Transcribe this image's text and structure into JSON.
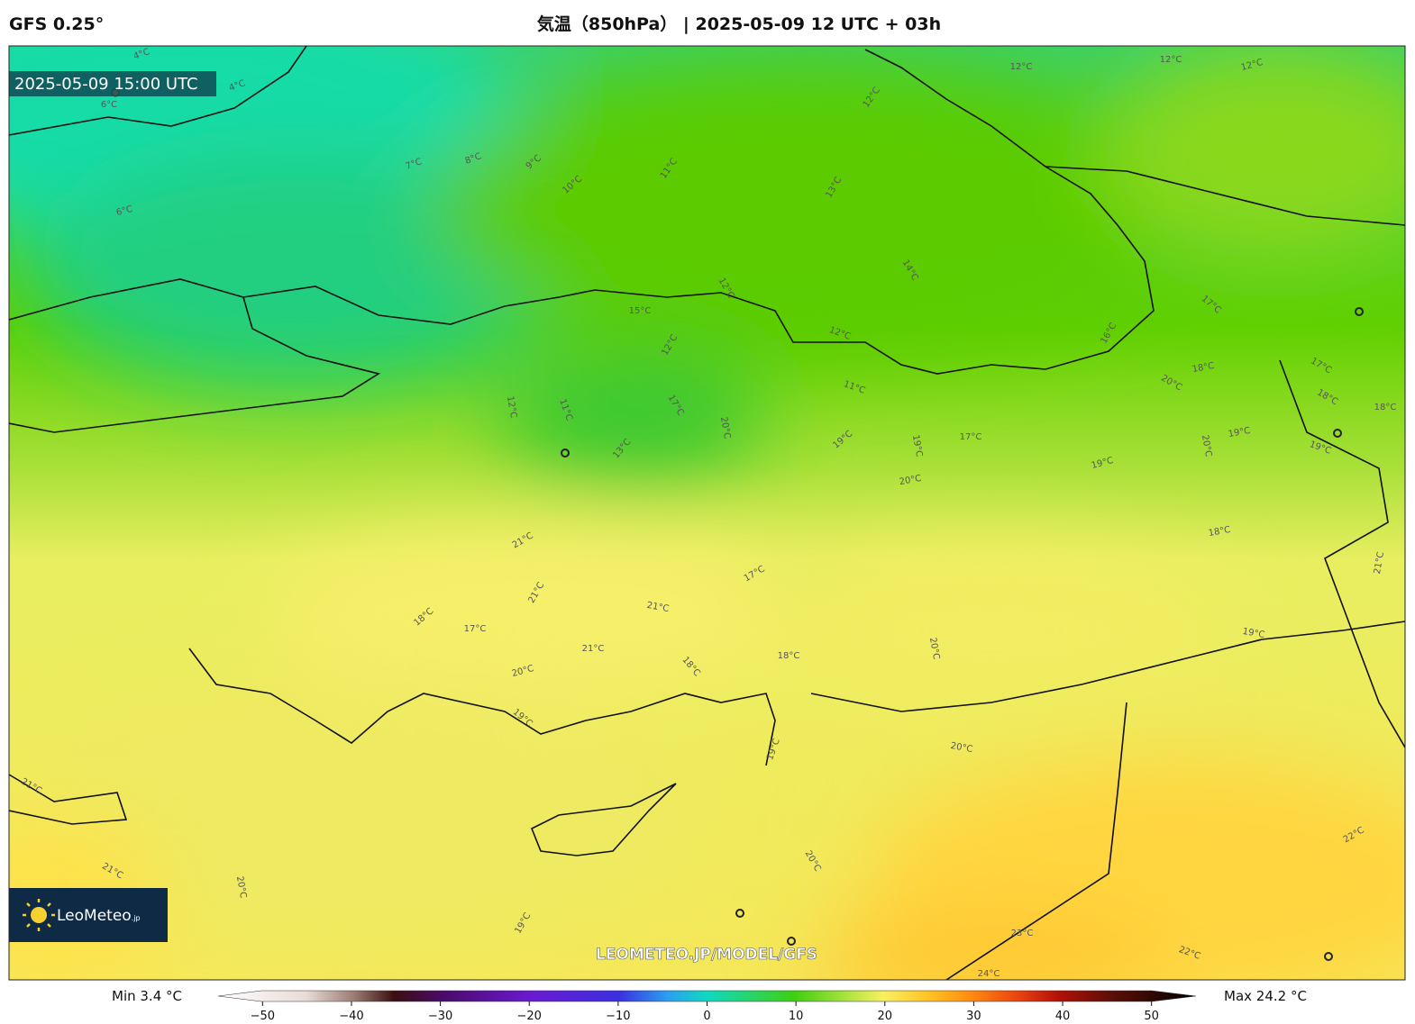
{
  "header": {
    "model": "GFS 0.25°",
    "title": "気温（850hPa） | 2025-05-09 12 UTC + 03h"
  },
  "map": {
    "timestamp": "2025-05-09 15:00 UTC",
    "logo": "LeoMeteo",
    "logo_suffix": ".jp",
    "watermark": "LEOMETEO.JP/MODEL/GFS",
    "contour_labels": [
      "4°C",
      "4°C",
      "6°C",
      "6°C",
      "7°C",
      "8°C",
      "9°C",
      "10°C",
      "11°C",
      "12°C",
      "13°C",
      "14°C",
      "12°C",
      "12°C",
      "12°C",
      "15°C",
      "12°C",
      "12°C",
      "11°C",
      "12°C",
      "12°C",
      "11°C",
      "13°C",
      "17°C",
      "20°C",
      "19°C",
      "19°C",
      "17°C",
      "16°C",
      "17°C",
      "18°C",
      "17°C",
      "20°C",
      "18°C",
      "19°C",
      "20°C",
      "20°C",
      "19°C",
      "19°C",
      "21°C",
      "21°C",
      "18°C",
      "17°C",
      "21°C",
      "21°C",
      "17°C",
      "18°C",
      "18°C",
      "20°C",
      "19°C",
      "20°C",
      "19°C",
      "20°C",
      "19°C",
      "21°C",
      "21°C",
      "20°C",
      "19°C",
      "20°C",
      "22°C",
      "23°C",
      "22°C",
      "24°C",
      "18°C",
      "21°C",
      "18°C"
    ]
  },
  "colorbar": {
    "min_label": "Min 3.4 °C",
    "max_label": "Max 24.2 °C",
    "lim": [
      -55,
      55
    ],
    "ticks": [
      {
        "value": -50,
        "label": "−50"
      },
      {
        "value": -40,
        "label": "−40"
      },
      {
        "value": -30,
        "label": "−30"
      },
      {
        "value": -20,
        "label": "−20"
      },
      {
        "value": -10,
        "label": "−10"
      },
      0,
      10,
      20,
      30,
      40,
      50
    ]
  }
}
